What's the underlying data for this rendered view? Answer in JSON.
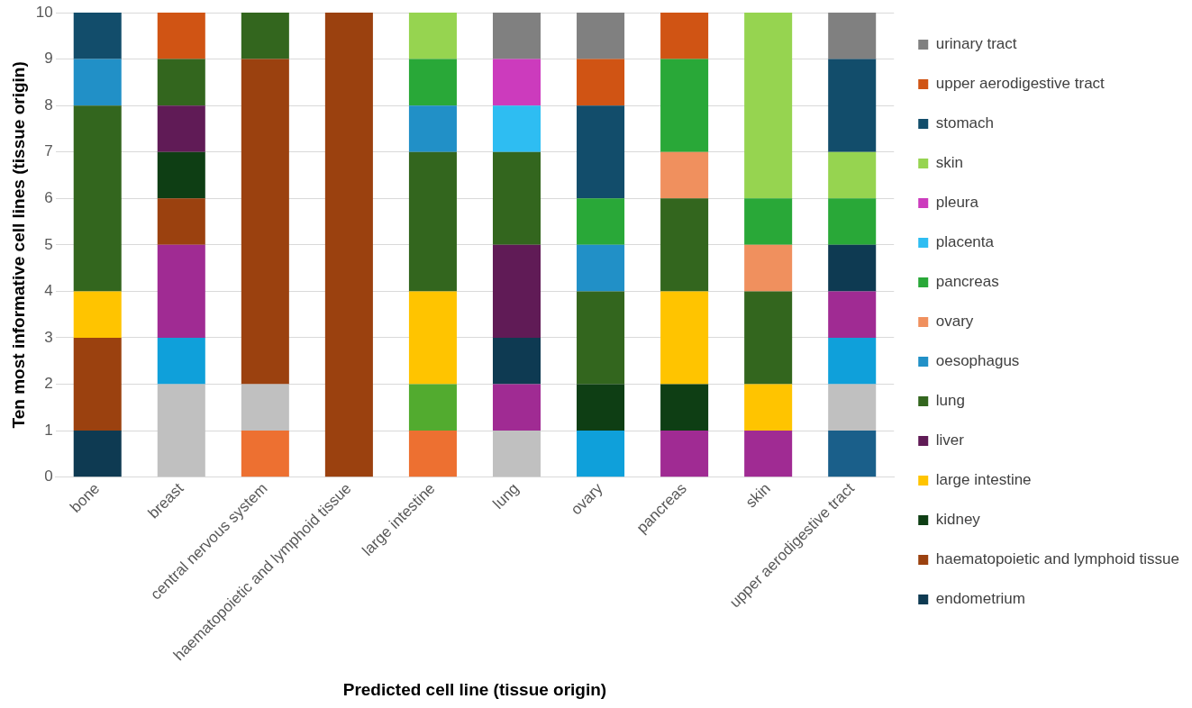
{
  "chart_data": {
    "type": "bar",
    "stacked": true,
    "xlabel": "Predicted cell line (tissue origin)",
    "ylabel": "Ten most informative cell lines (tissue origin)",
    "categories": [
      "bone",
      "breast",
      "central nervous system",
      "haematopoietic and lymphoid tissue",
      "large intestine",
      "lung",
      "ovary",
      "pancreas",
      "skin",
      "upper aerodigestive tract"
    ],
    "ylim": [
      0,
      10
    ],
    "yticks": [
      0,
      1,
      2,
      3,
      4,
      5,
      6,
      7,
      8,
      9,
      10
    ],
    "grid": "y",
    "legend": "right",
    "series": [
      {
        "color": "#1a5f8a",
        "values": [
          null,
          null,
          null,
          null,
          null,
          null,
          null,
          null,
          null,
          1
        ]
      },
      {
        "color": "#ed7031",
        "values": [
          null,
          null,
          1,
          null,
          1,
          null,
          null,
          null,
          null,
          null
        ]
      },
      {
        "color": "#52ab2f",
        "values": [
          null,
          null,
          null,
          null,
          1,
          null,
          null,
          null,
          null,
          null
        ]
      },
      {
        "color": "#c0c0c0",
        "values": [
          null,
          2,
          1,
          null,
          null,
          1,
          null,
          null,
          null,
          1
        ]
      },
      {
        "color": "#0fa0da",
        "values": [
          null,
          1,
          null,
          null,
          null,
          null,
          1,
          null,
          null,
          1
        ]
      },
      {
        "color": "#a02b93",
        "values": [
          null,
          2,
          null,
          null,
          null,
          1,
          null,
          1,
          1,
          1
        ]
      },
      {
        "name": "endometrium",
        "color": "#0e3a52",
        "values": [
          1,
          null,
          null,
          null,
          null,
          1,
          null,
          null,
          null,
          1
        ]
      },
      {
        "name": "haematopoietic and lymphoid tissue",
        "color": "#9b410f",
        "values": [
          2,
          1,
          7,
          10,
          null,
          null,
          null,
          null,
          null,
          null
        ]
      },
      {
        "name": "kidney",
        "color": "#0e3e14",
        "values": [
          null,
          1,
          null,
          null,
          null,
          null,
          1,
          1,
          null,
          null
        ]
      },
      {
        "name": "large intestine",
        "color": "#ffc400",
        "values": [
          1,
          null,
          null,
          null,
          2,
          null,
          null,
          2,
          1,
          null
        ]
      },
      {
        "name": "liver",
        "color": "#601b56",
        "values": [
          null,
          1,
          null,
          null,
          null,
          2,
          null,
          null,
          null,
          null
        ]
      },
      {
        "name": "lung",
        "color": "#33661e",
        "values": [
          4,
          1,
          1,
          null,
          3,
          2,
          2,
          2,
          2,
          null
        ]
      },
      {
        "name": "oesophagus",
        "color": "#2190c7",
        "values": [
          1,
          null,
          null,
          null,
          1,
          null,
          1,
          null,
          null,
          null
        ]
      },
      {
        "name": "ovary",
        "color": "#f0905e",
        "values": [
          null,
          null,
          null,
          null,
          null,
          null,
          null,
          1,
          1,
          null
        ]
      },
      {
        "name": "pancreas",
        "color": "#29a838",
        "values": [
          null,
          null,
          null,
          null,
          1,
          null,
          1,
          2,
          1,
          1
        ]
      },
      {
        "name": "placenta",
        "color": "#2ebdf2",
        "values": [
          null,
          null,
          null,
          null,
          null,
          1,
          null,
          null,
          null,
          null
        ]
      },
      {
        "name": "pleura",
        "color": "#cc3bbd",
        "values": [
          null,
          null,
          null,
          null,
          null,
          1,
          null,
          null,
          null,
          null
        ]
      },
      {
        "name": "skin",
        "color": "#96d450",
        "values": [
          null,
          null,
          null,
          null,
          1,
          null,
          null,
          null,
          4,
          1
        ]
      },
      {
        "name": "stomach",
        "color": "#124d6b",
        "values": [
          1,
          null,
          null,
          null,
          null,
          null,
          2,
          null,
          null,
          2
        ]
      },
      {
        "name": "upper aerodigestive tract",
        "color": "#d05414",
        "values": [
          null,
          1,
          null,
          null,
          null,
          null,
          1,
          1,
          null,
          null
        ]
      },
      {
        "name": "urinary tract",
        "color": "#808080",
        "values": [
          null,
          null,
          null,
          null,
          null,
          1,
          1,
          null,
          null,
          1
        ]
      }
    ]
  }
}
